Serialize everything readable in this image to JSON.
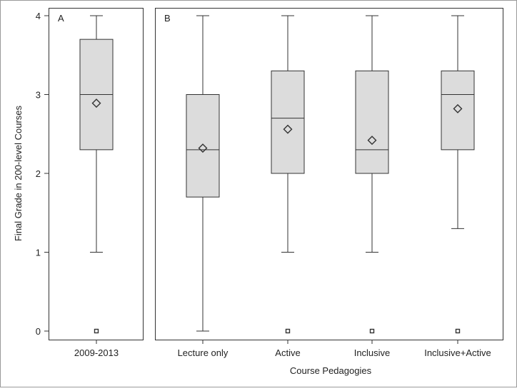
{
  "chart_data": {
    "type": "box",
    "ylabel": "Final Grade in 200-level Courses",
    "xlabel": "Course Pedagogies",
    "ylim": [
      0,
      4
    ],
    "yticks": [
      0,
      1,
      2,
      3,
      4
    ],
    "panels": [
      {
        "label": "A",
        "groups": [
          {
            "category": "2009-2013",
            "whisker_low": 1.0,
            "q1": 2.3,
            "median": 3.0,
            "q3": 3.7,
            "whisker_high": 4.0,
            "mean": 2.89,
            "outliers": [
              0
            ]
          }
        ]
      },
      {
        "label": "B",
        "groups": [
          {
            "category": "Lecture only",
            "whisker_low": 0.0,
            "q1": 1.7,
            "median": 2.3,
            "q3": 3.0,
            "whisker_high": 4.0,
            "mean": 2.32,
            "outliers": []
          },
          {
            "category": "Active",
            "whisker_low": 1.0,
            "q1": 2.0,
            "median": 2.7,
            "q3": 3.3,
            "whisker_high": 4.0,
            "mean": 2.56,
            "outliers": [
              0
            ]
          },
          {
            "category": "Inclusive",
            "whisker_low": 1.0,
            "q1": 2.0,
            "median": 2.3,
            "q3": 3.3,
            "whisker_high": 4.0,
            "mean": 2.42,
            "outliers": [
              0
            ]
          },
          {
            "category": "Inclusive+Active",
            "whisker_low": 1.3,
            "q1": 2.3,
            "median": 3.0,
            "q3": 3.3,
            "whisker_high": 4.0,
            "mean": 2.82,
            "outliers": [
              0
            ]
          }
        ]
      }
    ]
  }
}
